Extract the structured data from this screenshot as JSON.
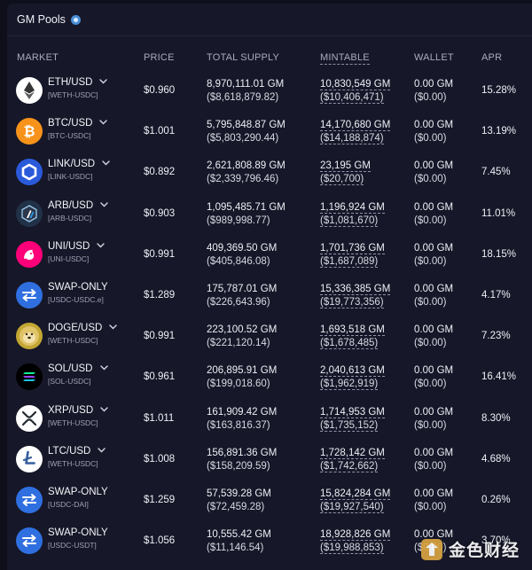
{
  "header": {
    "title": "GM Pools"
  },
  "columns": {
    "market": "MARKET",
    "price": "PRICE",
    "total_supply": "TOTAL SUPPLY",
    "mintable": "MINTABLE",
    "wallet": "WALLET",
    "apr": "APR"
  },
  "rows": [
    {
      "icon": "eth-icon",
      "color": "#ffffff",
      "name": "ETH/USD",
      "pair": "[WETH-USDC]",
      "price": "$0.960",
      "supply": "8,970,111.01 GM",
      "supply_usd": "($8,618,879.82)",
      "mint": "10,830,549 GM",
      "mint_usd": "($10,406,471)",
      "wallet": "0.00 GM",
      "wallet_usd": "($0.00)",
      "apr": "15.28%"
    },
    {
      "icon": "btc-icon",
      "color": "#f7931a",
      "name": "BTC/USD",
      "pair": "[BTC-USDC]",
      "price": "$1.001",
      "supply": "5,795,848.87 GM",
      "supply_usd": "($5,803,290.44)",
      "mint": "14,170,680 GM",
      "mint_usd": "($14,188,874)",
      "wallet": "0.00 GM",
      "wallet_usd": "($0.00)",
      "apr": "13.19%"
    },
    {
      "icon": "link-icon",
      "color": "#2a5ada",
      "name": "LINK/USD",
      "pair": "[LINK-USDC]",
      "price": "$0.892",
      "supply": "2,621,808.89 GM",
      "supply_usd": "($2,339,796.46)",
      "mint": "23,195 GM",
      "mint_usd": "($20,700)",
      "wallet": "0.00 GM",
      "wallet_usd": "($0.00)",
      "apr": "7.45%"
    },
    {
      "icon": "arb-icon",
      "color": "#213147",
      "name": "ARB/USD",
      "pair": "[ARB-USDC]",
      "price": "$0.903",
      "supply": "1,095,485.71 GM",
      "supply_usd": "($989,998.77)",
      "mint": "1,196,924 GM",
      "mint_usd": "($1,081,670)",
      "wallet": "0.00 GM",
      "wallet_usd": "($0.00)",
      "apr": "11.01%"
    },
    {
      "icon": "uni-icon",
      "color": "#ff007a",
      "name": "UNI/USD",
      "pair": "[UNI-USDC]",
      "price": "$0.991",
      "supply": "409,369.50 GM",
      "supply_usd": "($405,846.08)",
      "mint": "1,701,736 GM",
      "mint_usd": "($1,687,089)",
      "wallet": "0.00 GM",
      "wallet_usd": "($0.00)",
      "apr": "18.15%"
    },
    {
      "icon": "swap-icon",
      "color": "#2f6fe0",
      "name": "SWAP-ONLY",
      "pair": "[USDC-USDC.e]",
      "price": "$1.289",
      "supply": "175,787.01 GM",
      "supply_usd": "($226,643.96)",
      "mint": "15,336,385 GM",
      "mint_usd": "($19,773,356)",
      "wallet": "0.00 GM",
      "wallet_usd": "($0.00)",
      "apr": "4.17%"
    },
    {
      "icon": "doge-icon",
      "color": "#c2a633",
      "name": "DOGE/USD",
      "pair": "[WETH-USDC]",
      "price": "$0.991",
      "supply": "223,100.52 GM",
      "supply_usd": "($221,120.14)",
      "mint": "1,693,518 GM",
      "mint_usd": "($1,678,485)",
      "wallet": "0.00 GM",
      "wallet_usd": "($0.00)",
      "apr": "7.23%"
    },
    {
      "icon": "sol-icon",
      "color": "#000000",
      "name": "SOL/USD",
      "pair": "[SOL-USDC]",
      "price": "$0.961",
      "supply": "206,895.91 GM",
      "supply_usd": "($199,018.60)",
      "mint": "2,040,613 GM",
      "mint_usd": "($1,962,919)",
      "wallet": "0.00 GM",
      "wallet_usd": "($0.00)",
      "apr": "16.41%"
    },
    {
      "icon": "xrp-icon",
      "color": "#ffffff",
      "name": "XRP/USD",
      "pair": "[WETH-USDC]",
      "price": "$1.011",
      "supply": "161,909.42 GM",
      "supply_usd": "($163,816.37)",
      "mint": "1,714,953 GM",
      "mint_usd": "($1,735,152)",
      "wallet": "0.00 GM",
      "wallet_usd": "($0.00)",
      "apr": "8.30%"
    },
    {
      "icon": "ltc-icon",
      "color": "#ffffff",
      "name": "LTC/USD",
      "pair": "[WETH-USDC]",
      "price": "$1.008",
      "supply": "156,891.36 GM",
      "supply_usd": "($158,209.59)",
      "mint": "1,728,142 GM",
      "mint_usd": "($1,742,662)",
      "wallet": "0.00 GM",
      "wallet_usd": "($0.00)",
      "apr": "4.68%"
    },
    {
      "icon": "swap-icon",
      "color": "#2f6fe0",
      "name": "SWAP-ONLY",
      "pair": "[USDC-DAI]",
      "price": "$1.259",
      "supply": "57,539.28 GM",
      "supply_usd": "($72,459.28)",
      "mint": "15,824,284 GM",
      "mint_usd": "($19,927,540)",
      "wallet": "0.00 GM",
      "wallet_usd": "($0.00)",
      "apr": "0.26%"
    },
    {
      "icon": "swap-icon",
      "color": "#2f6fe0",
      "name": "SWAP-ONLY",
      "pair": "[USDC-USDT]",
      "price": "$1.056",
      "supply": "10,555.42 GM",
      "supply_usd": "($11,146.54)",
      "mint": "18,928,826 GM",
      "mint_usd": "($19,988,853)",
      "wallet": "0.00 GM",
      "wallet_usd": "($0.00)",
      "apr": "3.70%"
    }
  ],
  "watermark": {
    "text": "金色财经",
    "icon": "jinse-logo-icon"
  }
}
